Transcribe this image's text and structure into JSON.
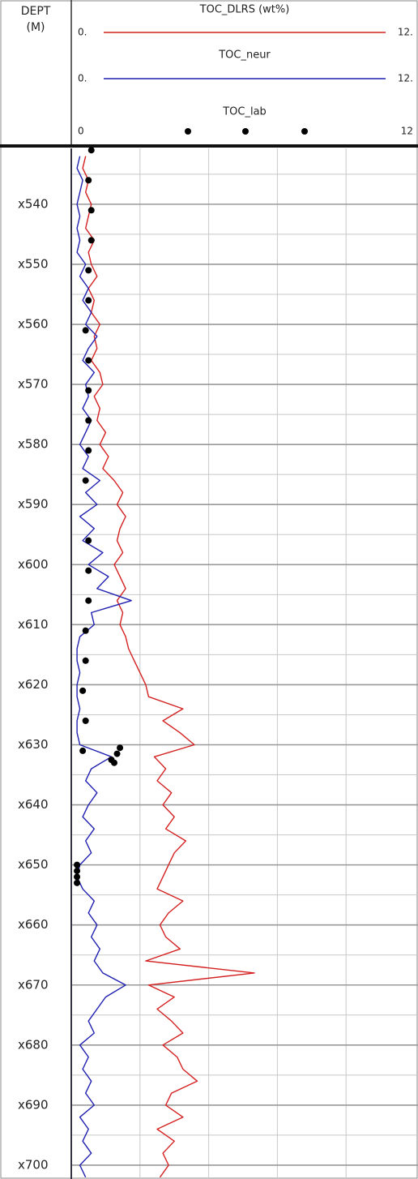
{
  "chart_data": {
    "type": "well-log",
    "ylabel": "DEPT",
    "yunit": "(M)",
    "ylim": [
      530.7,
      702.3
    ],
    "yticks": [
      {
        "value": 540,
        "label": "x540"
      },
      {
        "value": 550,
        "label": "x550"
      },
      {
        "value": 560,
        "label": "x560"
      },
      {
        "value": 570,
        "label": "x570"
      },
      {
        "value": 580,
        "label": "x580"
      },
      {
        "value": 590,
        "label": "x590"
      },
      {
        "value": 600,
        "label": "x600"
      },
      {
        "value": 610,
        "label": "x610"
      },
      {
        "value": 620,
        "label": "x620"
      },
      {
        "value": 630,
        "label": "x630"
      },
      {
        "value": 640,
        "label": "x640"
      },
      {
        "value": 650,
        "label": "x650"
      },
      {
        "value": 660,
        "label": "x660"
      },
      {
        "value": 670,
        "label": "x670"
      },
      {
        "value": 680,
        "label": "x680"
      },
      {
        "value": 690,
        "label": "x690"
      },
      {
        "value": 700,
        "label": "x700"
      }
    ],
    "yminorticks": [
      535,
      545,
      555,
      565,
      575,
      585,
      595,
      605,
      615,
      625,
      635,
      645,
      655,
      665,
      675,
      685,
      695
    ],
    "xlim": [
      0,
      12
    ],
    "xgrid": [
      2.4,
      4.8,
      7.2,
      9.6
    ],
    "depth": [
      532,
      534,
      536,
      538,
      540,
      542,
      544,
      546,
      548,
      550,
      552,
      554,
      556,
      558,
      560,
      562,
      564,
      566,
      568,
      570,
      572,
      574,
      576,
      578,
      580,
      582,
      584,
      586,
      588,
      590,
      592,
      594,
      596,
      598,
      600,
      602,
      604,
      606,
      608,
      610,
      612,
      614,
      616,
      618,
      620,
      622,
      624,
      626,
      628,
      630,
      632,
      634,
      636,
      638,
      640,
      642,
      644,
      646,
      648,
      650,
      652,
      654,
      656,
      658,
      660,
      662,
      664,
      666,
      668,
      670,
      672,
      674,
      676,
      678,
      680,
      682,
      684,
      686,
      688,
      690,
      692,
      694,
      696,
      698,
      700,
      702
    ],
    "series": [
      {
        "name": "TOC_DLRS (wt%)",
        "color": "#d42020",
        "type": "line",
        "xticks": [
          {
            "value": 0,
            "label": "0."
          },
          {
            "value": 12,
            "label": "12."
          }
        ],
        "values": [
          0.5,
          0.4,
          0.6,
          0.5,
          0.7,
          0.6,
          0.5,
          0.8,
          0.6,
          0.7,
          0.9,
          0.6,
          0.8,
          0.7,
          1.0,
          0.8,
          0.9,
          0.7,
          1.0,
          1.1,
          0.8,
          1.0,
          0.9,
          1.2,
          1.0,
          1.3,
          1.1,
          1.5,
          1.8,
          1.6,
          1.9,
          1.7,
          1.6,
          1.8,
          1.5,
          1.7,
          1.9,
          1.6,
          1.8,
          1.7,
          1.9,
          2.0,
          2.2,
          2.4,
          2.6,
          2.7,
          3.9,
          3.2,
          3.8,
          4.3,
          2.9,
          3.3,
          3.0,
          3.5,
          3.2,
          3.6,
          3.3,
          4.0,
          3.6,
          3.4,
          3.2,
          3.0,
          3.9,
          3.4,
          3.1,
          3.3,
          3.8,
          2.6,
          6.4,
          2.7,
          3.6,
          3.0,
          3.5,
          3.9,
          3.2,
          3.7,
          3.9,
          4.4,
          3.5,
          3.3,
          3.9,
          3.0,
          3.6,
          3.2,
          3.4,
          3.1
        ]
      },
      {
        "name": "TOC_neur",
        "color": "#1f1fb0",
        "type": "line",
        "xticks": [
          {
            "value": 0,
            "label": "0."
          },
          {
            "value": 12,
            "label": "12."
          }
        ],
        "values": [
          0.3,
          0.2,
          0.4,
          0.3,
          0.2,
          0.3,
          0.2,
          0.3,
          0.2,
          0.5,
          0.3,
          0.6,
          0.4,
          0.7,
          0.5,
          0.9,
          0.6,
          0.4,
          0.8,
          0.5,
          0.6,
          0.4,
          0.7,
          0.5,
          0.3,
          0.6,
          0.4,
          1.0,
          0.5,
          0.9,
          0.3,
          0.8,
          0.4,
          1.1,
          0.6,
          1.3,
          0.9,
          2.1,
          0.7,
          0.8,
          0.3,
          0.2,
          0.2,
          0.3,
          0.2,
          0.2,
          0.3,
          0.2,
          0.2,
          0.3,
          1.4,
          0.7,
          0.5,
          0.9,
          0.6,
          0.4,
          0.8,
          0.5,
          0.7,
          0.3,
          0.2,
          0.4,
          0.8,
          0.6,
          0.9,
          0.7,
          1.0,
          0.8,
          1.1,
          1.9,
          1.2,
          0.9,
          0.6,
          0.8,
          0.3,
          0.6,
          0.4,
          0.7,
          0.5,
          0.8,
          0.3,
          0.6,
          0.4,
          0.7,
          0.3,
          0.5
        ]
      },
      {
        "name": "TOC_lab",
        "color": "#000000",
        "type": "scatter",
        "xticks": [
          0,
          12
        ],
        "depth": [
          531,
          536,
          541,
          546,
          551,
          556,
          561,
          566,
          571,
          576,
          581,
          586,
          596,
          601,
          606,
          611,
          616,
          621,
          626,
          631,
          630.5,
          631.5,
          632.5,
          633,
          650,
          651,
          652,
          653
        ],
        "values": [
          0.7,
          0.6,
          0.7,
          0.7,
          0.6,
          0.6,
          0.5,
          0.6,
          0.6,
          0.6,
          0.6,
          0.5,
          0.6,
          0.6,
          0.6,
          0.5,
          0.5,
          0.4,
          0.5,
          0.4,
          1.7,
          1.6,
          1.4,
          1.5,
          0.2,
          0.2,
          0.2,
          0.2
        ]
      }
    ]
  }
}
